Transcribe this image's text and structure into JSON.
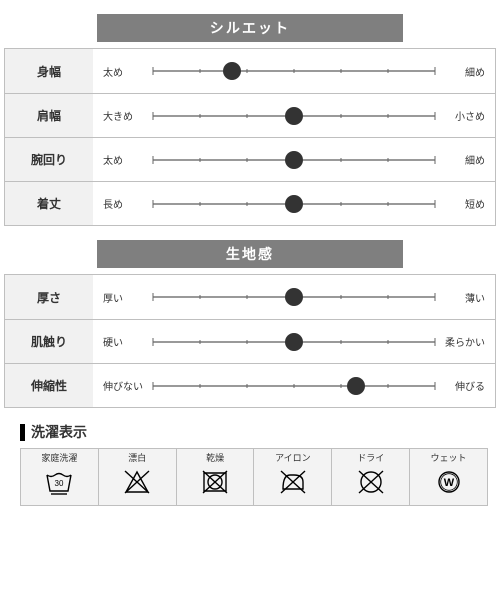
{
  "sections": [
    {
      "title": "シルエット",
      "rows": [
        {
          "label": "身幅",
          "left": "太め",
          "right": "細め",
          "pos": 0.28
        },
        {
          "label": "肩幅",
          "left": "大きめ",
          "right": "小さめ",
          "pos": 0.5
        },
        {
          "label": "腕回り",
          "left": "太め",
          "right": "細め",
          "pos": 0.5
        },
        {
          "label": "着丈",
          "left": "長め",
          "right": "短め",
          "pos": 0.5
        }
      ]
    },
    {
      "title": "生地感",
      "rows": [
        {
          "label": "厚さ",
          "left": "厚い",
          "right": "薄い",
          "pos": 0.5
        },
        {
          "label": "肌触り",
          "left": "硬い",
          "right": "柔らかい",
          "pos": 0.5
        },
        {
          "label": "伸縮性",
          "left": "伸びない",
          "right": "伸びる",
          "pos": 0.72
        }
      ]
    }
  ],
  "slider": {
    "tick_positions": [
      0,
      16.67,
      33.33,
      50,
      66.67,
      83.33,
      100
    ],
    "minor_ticks": [
      16.67,
      33.33,
      50,
      66.67,
      83.33
    ],
    "end_ticks": [
      0,
      100
    ],
    "dot_radius": 9,
    "line_color": "#333333",
    "dot_color": "#333333"
  },
  "wash": {
    "title": "洗濯表示",
    "items": [
      {
        "label": "家庭洗濯",
        "icon": "wash-30"
      },
      {
        "label": "漂白",
        "icon": "bleach-no"
      },
      {
        "label": "乾燥",
        "icon": "tumble-no"
      },
      {
        "label": "アイロン",
        "icon": "iron-no"
      },
      {
        "label": "ドライ",
        "icon": "dry-no"
      },
      {
        "label": "ウェット",
        "icon": "wet-w"
      }
    ]
  },
  "colors": {
    "header_bg": "#7f7f7f",
    "header_fg": "#ffffff",
    "border": "#bfbfbf",
    "label_bg": "#f1f1f1",
    "wash_bg": "#f3f3f3"
  }
}
